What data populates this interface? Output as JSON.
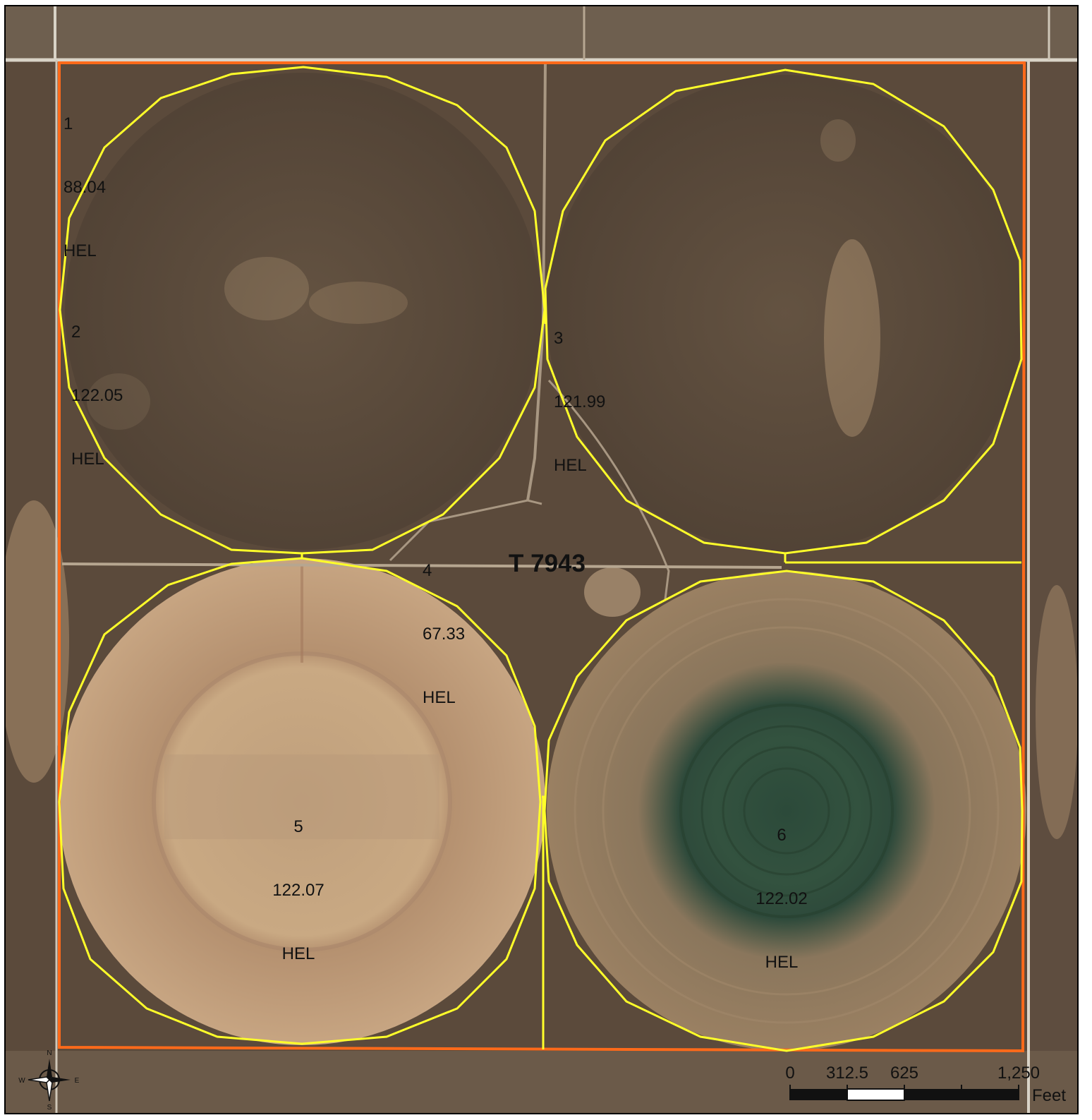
{
  "map": {
    "tract": "T 7943",
    "colors": {
      "tract_boundary": "#ff6a1a",
      "field_boundary": "#ffff2a",
      "road": "#d9d3c7",
      "grass_dark": "#4f4234",
      "bare_soil": "#c7a27a",
      "crop_green": "#2f4a3a"
    },
    "fields": [
      {
        "number": "1",
        "acres": "88.04",
        "hel": "HEL"
      },
      {
        "number": "2",
        "acres": "122.05",
        "hel": "HEL"
      },
      {
        "number": "3",
        "acres": "121.99",
        "hel": "HEL"
      },
      {
        "number": "4",
        "acres": "67.33",
        "hel": "HEL"
      },
      {
        "number": "5",
        "acres": "122.07",
        "hel": "HEL"
      },
      {
        "number": "6",
        "acres": "122.02",
        "hel": "HEL"
      }
    ],
    "north_arrow": {
      "n": "N",
      "s": "S",
      "e": "E",
      "w": "W",
      "icon": "compass-rose-icon"
    },
    "scale_bar": {
      "ticks": [
        "0",
        "312.5",
        "625",
        "1,250"
      ],
      "unit": "Feet"
    }
  }
}
